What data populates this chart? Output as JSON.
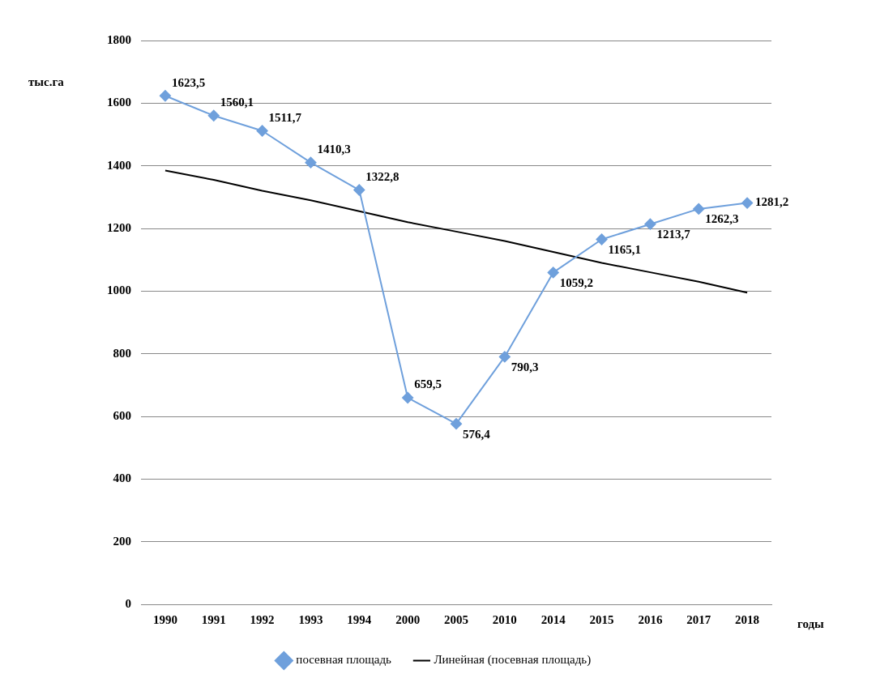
{
  "chart_data": {
    "type": "line",
    "xlabel": "годы",
    "ylabel": "тыс.га",
    "categories": [
      "1990",
      "1991",
      "1992",
      "1993",
      "1994",
      "2000",
      "2005",
      "2010",
      "2014",
      "2015",
      "2016",
      "2017",
      "2018"
    ],
    "series": [
      {
        "name": "посевная площадь",
        "color": "#6fa0dc",
        "marker": "diamond",
        "values": [
          1623.5,
          1560.1,
          1511.7,
          1410.3,
          1322.8,
          659.5,
          576.4,
          790.3,
          1059.2,
          1165.1,
          1213.7,
          1262.3,
          1281.2
        ],
        "value_labels": [
          "1623,5",
          "1560,1",
          "1511,7",
          "1410,3",
          "1322,8",
          "659,5",
          "576,4",
          "790,3",
          "1059,2",
          "1165,1",
          "1213,7",
          "1262,3",
          "1281,2"
        ]
      },
      {
        "name": "Линейная (посевная площадь)",
        "color": "#000000",
        "marker": "none",
        "values": [
          1385,
          1355,
          1320,
          1290,
          1255,
          1220,
          1190,
          1160,
          1125,
          1090,
          1060,
          1030,
          995
        ]
      }
    ],
    "ylim": [
      0,
      1800
    ],
    "yticks": [
      0,
      200,
      400,
      600,
      800,
      1000,
      1200,
      1400,
      1600,
      1800
    ],
    "grid": "y",
    "legend": "bottom"
  }
}
